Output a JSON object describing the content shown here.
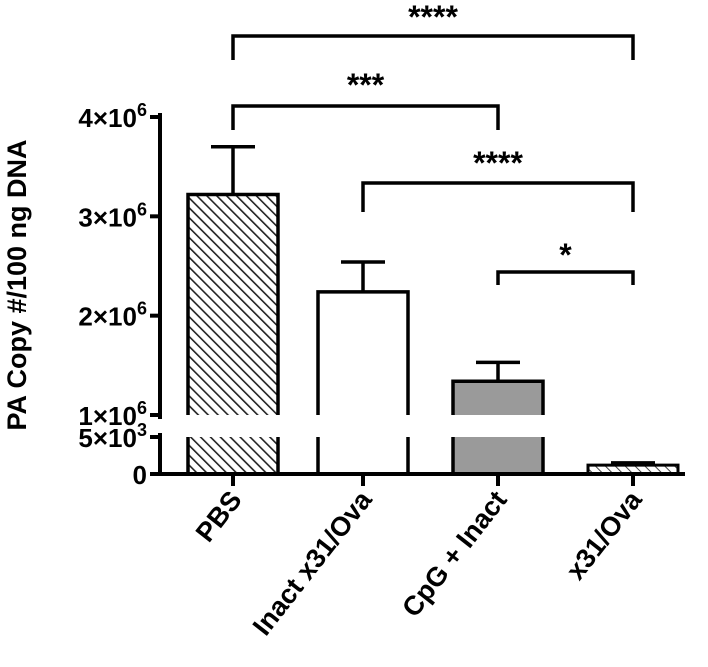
{
  "chart_data": {
    "type": "bar",
    "ylabel": "PA Copy #/100 ng DNA",
    "xlabel": "",
    "title": "",
    "axis_break": true,
    "upper_segment": {
      "range": [
        1000000,
        4000000
      ],
      "ticks": [
        {
          "value": 1000000,
          "mantissa": "1×10",
          "exp": "6"
        },
        {
          "value": 2000000,
          "mantissa": "2×10",
          "exp": "6"
        },
        {
          "value": 3000000,
          "mantissa": "3×10",
          "exp": "6"
        },
        {
          "value": 4000000,
          "mantissa": "4×10",
          "exp": "6"
        }
      ]
    },
    "lower_segment": {
      "range": [
        0,
        5000
      ],
      "ticks": [
        {
          "value": 0,
          "mantissa": "0",
          "exp": ""
        },
        {
          "value": 5000,
          "mantissa": "5×10",
          "exp": "3"
        }
      ]
    },
    "categories": [
      "PBS",
      "Inact x31/Ova",
      "CpG + Inact",
      "x31/Ova"
    ],
    "values": [
      3220000,
      2240000,
      1340000,
      1200
    ],
    "errors": [
      480000,
      300000,
      190000,
      300
    ],
    "fills": [
      "diag-dense",
      "white",
      "gray",
      "diag-light"
    ],
    "significance": [
      {
        "from": 0,
        "to": 3,
        "label": "****"
      },
      {
        "from": 0,
        "to": 2,
        "label": "***"
      },
      {
        "from": 1,
        "to": 3,
        "label": "****"
      },
      {
        "from": 2,
        "to": 3,
        "label": "*"
      }
    ]
  }
}
